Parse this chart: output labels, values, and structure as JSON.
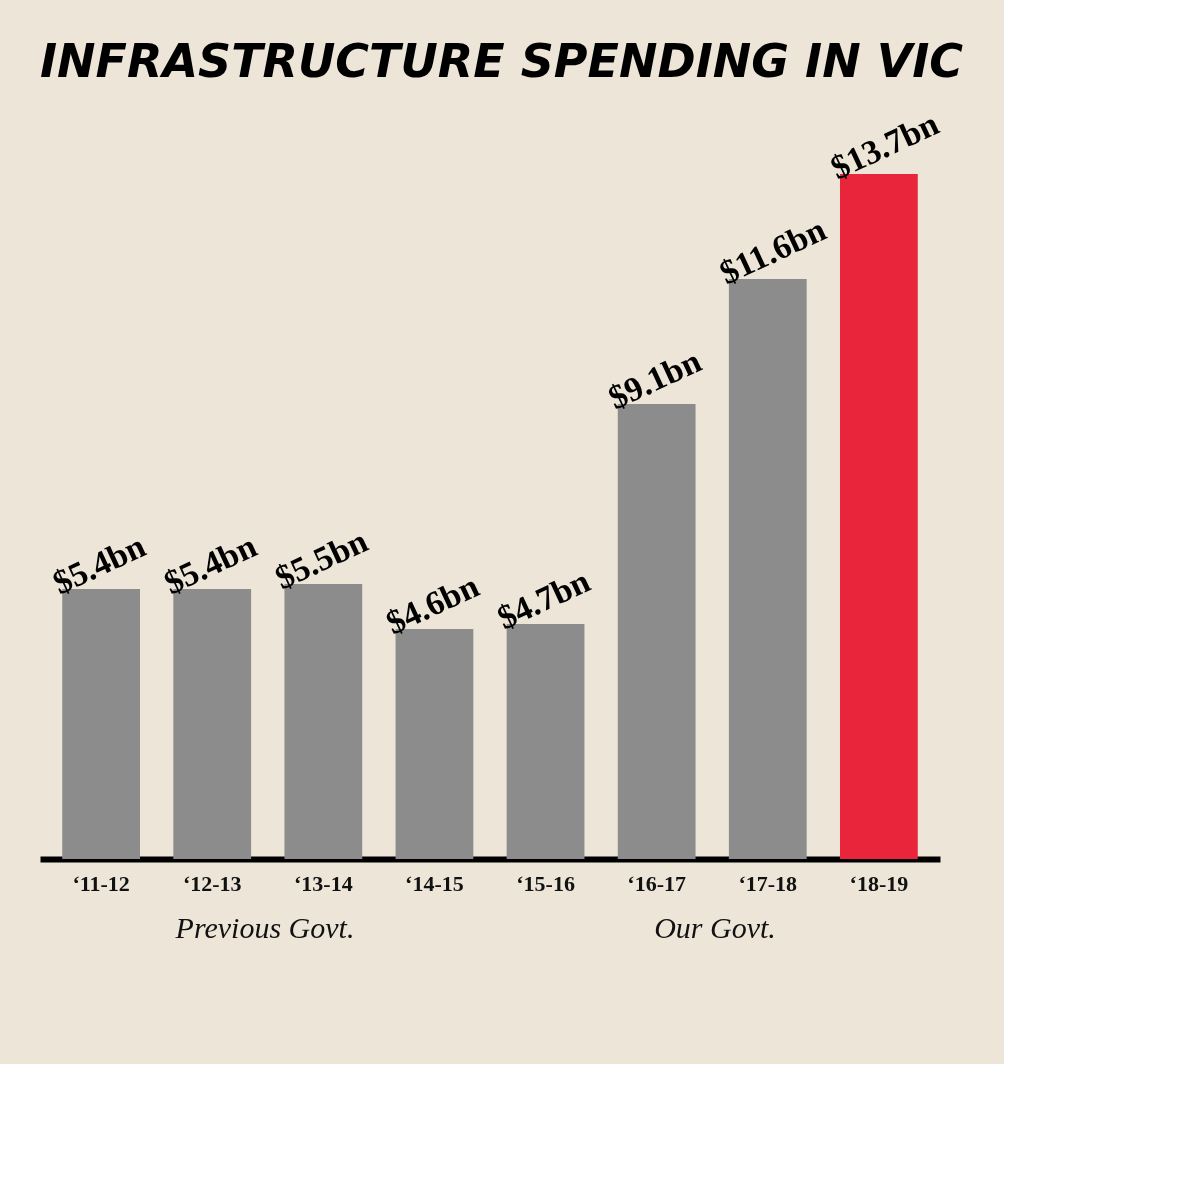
{
  "chart_data": {
    "type": "bar",
    "title": "INFRASTRUCTURE SPENDING IN VIC",
    "categories": [
      "‘11-12",
      "‘12-13",
      "‘13-14",
      "‘14-15",
      "‘15-16",
      "‘16-17",
      "‘17-18",
      "‘18-19"
    ],
    "values": [
      5.4,
      5.4,
      5.5,
      4.6,
      4.7,
      9.1,
      11.6,
      13.7
    ],
    "colors": [
      "#8c8c8c",
      "#8c8c8c",
      "#8c8c8c",
      "#8c8c8c",
      "#8c8c8c",
      "#8c8c8c",
      "#8c8c8c",
      "#e8253b"
    ],
    "value_labels": [
      "$5.4bn",
      "$5.4bn",
      "$5.5bn",
      "$4.6bn",
      "$4.7bn",
      "$9.1bn",
      "$11.6bn",
      "$13.7bn"
    ],
    "annotations": [
      "Previous Govt.",
      "Our Govt."
    ],
    "grid": false
  }
}
